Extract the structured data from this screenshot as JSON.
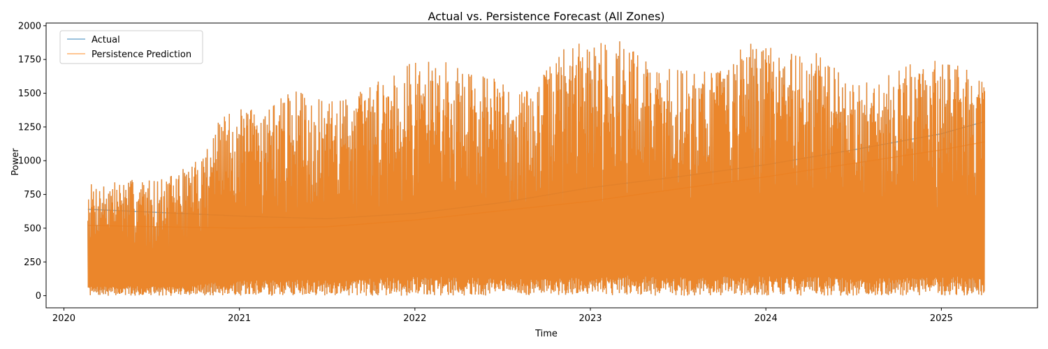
{
  "chart_data": {
    "type": "line",
    "title": "Actual vs. Persistence Forecast (All Zones)",
    "xlabel": "Time",
    "ylabel": "Power",
    "xlim": [
      "2019-11-25",
      "2025-07-20"
    ],
    "ylim": [
      -90,
      2020
    ],
    "xticks": [
      "2020",
      "2021",
      "2022",
      "2023",
      "2024",
      "2025"
    ],
    "yticks": [
      0,
      250,
      500,
      750,
      1000,
      1250,
      1500,
      1750,
      2000
    ],
    "grid": false,
    "legend": "top-left",
    "series": [
      {
        "name": "Actual",
        "color": "#1f77b4",
        "opacity": 0.6,
        "trend": [
          {
            "date": "2020-02-20",
            "value": 640
          },
          {
            "date": "2021-01-01",
            "value": 590
          },
          {
            "date": "2021-07-01",
            "value": 570
          },
          {
            "date": "2022-01-01",
            "value": 610
          },
          {
            "date": "2022-07-01",
            "value": 690
          },
          {
            "date": "2023-01-01",
            "value": 800
          },
          {
            "date": "2023-07-01",
            "value": 880
          },
          {
            "date": "2024-01-01",
            "value": 970
          },
          {
            "date": "2024-07-01",
            "value": 1080
          },
          {
            "date": "2025-01-01",
            "value": 1200
          },
          {
            "date": "2025-04-01",
            "value": 1290
          }
        ]
      },
      {
        "name": "Persistence Prediction",
        "color": "#ff7f0e",
        "opacity": 0.6,
        "trend": [
          {
            "date": "2020-02-20",
            "value": 520
          },
          {
            "date": "2021-01-01",
            "value": 500
          },
          {
            "date": "2021-07-01",
            "value": 510
          },
          {
            "date": "2022-01-01",
            "value": 560
          },
          {
            "date": "2022-07-01",
            "value": 630
          },
          {
            "date": "2023-01-01",
            "value": 700
          },
          {
            "date": "2023-07-01",
            "value": 790
          },
          {
            "date": "2024-01-01",
            "value": 880
          },
          {
            "date": "2024-07-01",
            "value": 980
          },
          {
            "date": "2025-01-01",
            "value": 1080
          },
          {
            "date": "2025-04-01",
            "value": 1140
          }
        ]
      }
    ],
    "envelope": [
      {
        "date": "2020-02-20",
        "max": 830
      },
      {
        "date": "2020-05-01",
        "max": 860
      },
      {
        "date": "2020-08-01",
        "max": 870
      },
      {
        "date": "2020-10-01",
        "max": 1000
      },
      {
        "date": "2020-12-01",
        "max": 1360
      },
      {
        "date": "2021-03-01",
        "max": 1420
      },
      {
        "date": "2021-05-01",
        "max": 1530
      },
      {
        "date": "2021-07-01",
        "max": 1430
      },
      {
        "date": "2021-10-01",
        "max": 1570
      },
      {
        "date": "2021-12-01",
        "max": 1730
      },
      {
        "date": "2022-03-01",
        "max": 1740
      },
      {
        "date": "2022-06-01",
        "max": 1640
      },
      {
        "date": "2022-09-01",
        "max": 1520
      },
      {
        "date": "2022-11-01",
        "max": 1840
      },
      {
        "date": "2023-01-01",
        "max": 1900
      },
      {
        "date": "2023-03-01",
        "max": 1920
      },
      {
        "date": "2023-06-01",
        "max": 1680
      },
      {
        "date": "2023-09-01",
        "max": 1700
      },
      {
        "date": "2023-12-01",
        "max": 1870
      },
      {
        "date": "2024-02-01",
        "max": 1820
      },
      {
        "date": "2024-04-01",
        "max": 1840
      },
      {
        "date": "2024-07-01",
        "max": 1580
      },
      {
        "date": "2024-09-01",
        "max": 1660
      },
      {
        "date": "2024-12-01",
        "max": 1750
      },
      {
        "date": "2025-02-01",
        "max": 1760
      },
      {
        "date": "2025-04-01",
        "max": 1570
      }
    ]
  }
}
